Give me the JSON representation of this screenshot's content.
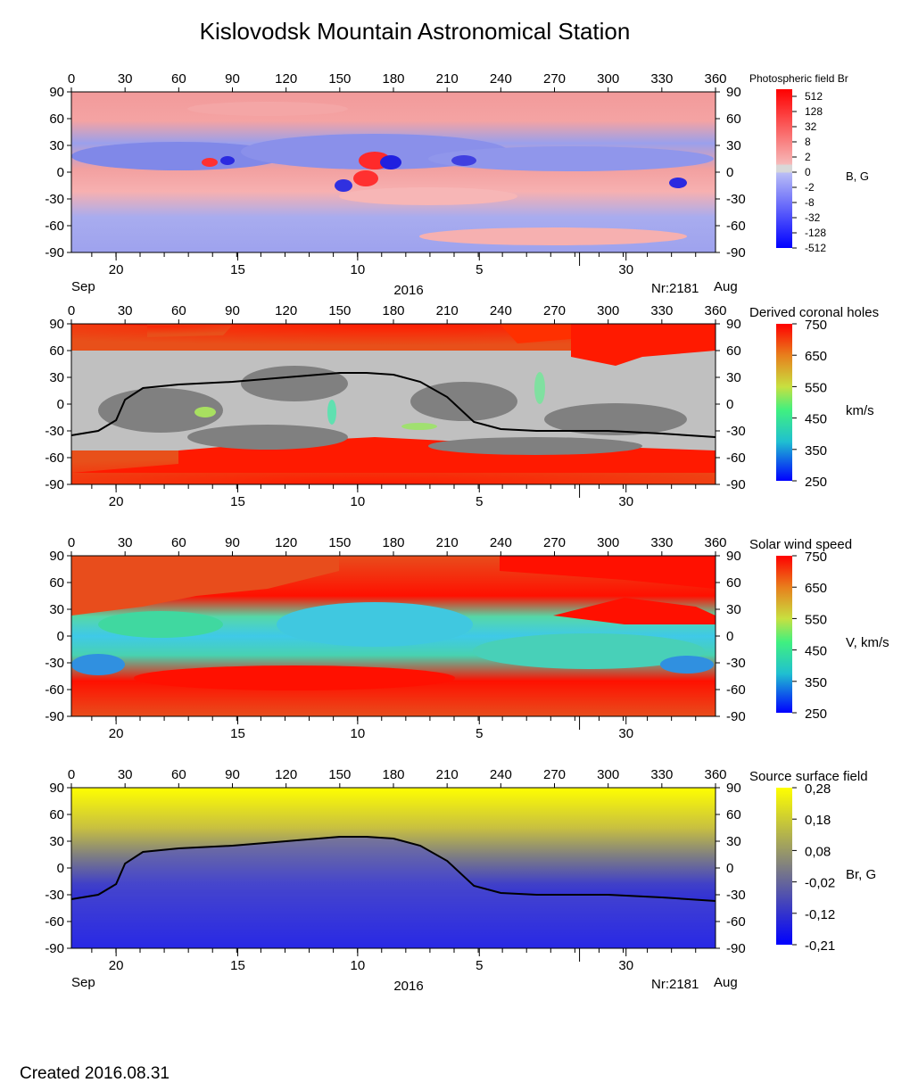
{
  "title": "Kislovodsk Mountain Astronomical Station",
  "created": "Created  2016.08.31",
  "axes": {
    "x_ticks": [
      "0",
      "30",
      "60",
      "90",
      "120",
      "150",
      "180",
      "210",
      "240",
      "270",
      "300",
      "330",
      "360"
    ],
    "y_ticks": [
      "90",
      "60",
      "30",
      "0",
      "-30",
      "-60",
      "-90"
    ],
    "date_ticks": [
      "20",
      "15",
      "10",
      "5",
      "30"
    ],
    "month_left": "Sep",
    "month_right": "Aug",
    "year": "2016",
    "rotation": "Nr:2181"
  },
  "chart_data": [
    {
      "type": "heatmap",
      "title": "Photospheric field Br",
      "colorbar_label": "B, G",
      "colorbar_ticks": [
        "512",
        "128",
        "32",
        "8",
        "2",
        "0",
        "-2",
        "-8",
        "-32",
        "-128",
        "-512"
      ],
      "xlim": [
        0,
        360
      ],
      "ylim": [
        -90,
        90
      ],
      "colors": {
        "positive": "#ff0000",
        "neutral": "#d8d8d8",
        "negative": "#0000ff"
      }
    },
    {
      "type": "heatmap",
      "title": "Derived coronal holes",
      "colorbar_label": "km/s",
      "colorbar_ticks": [
        "750",
        "650",
        "550",
        "450",
        "350",
        "250"
      ],
      "xlim": [
        0,
        360
      ],
      "ylim": [
        -90,
        90
      ],
      "colors": {
        "closed_field": "#808080",
        "closed_field_light": "#c0c0c0",
        "fast": "#ff1a00"
      },
      "neutral_line": {
        "x": [
          0,
          15,
          25,
          30,
          40,
          60,
          90,
          120,
          150,
          165,
          180,
          195,
          210,
          225,
          240,
          260,
          300,
          330,
          360
        ],
        "y": [
          -35,
          -30,
          -18,
          5,
          18,
          22,
          25,
          30,
          35,
          35,
          33,
          25,
          8,
          -20,
          -28,
          -30,
          -30,
          -33,
          -37
        ]
      }
    },
    {
      "type": "heatmap",
      "title": "Solar wind speed",
      "colorbar_label": "V, km/s",
      "colorbar_ticks": [
        "750",
        "650",
        "550",
        "450",
        "350",
        "250"
      ],
      "xlim": [
        0,
        360
      ],
      "ylim": [
        -90,
        90
      ],
      "colors": {
        "fast": "#ff1a00",
        "slow": "#40e0c0"
      }
    },
    {
      "type": "heatmap",
      "title": "Source surface field",
      "colorbar_label": "Br, G",
      "colorbar_ticks": [
        "0,28",
        "0,18",
        "0,08",
        "-0,02",
        "-0,12",
        "-0,21"
      ],
      "xlim": [
        0,
        360
      ],
      "ylim": [
        -90,
        90
      ],
      "colors": {
        "positive": "#ffff00",
        "neutral": "#808080",
        "negative": "#0000ff"
      },
      "neutral_line": {
        "x": [
          0,
          15,
          25,
          30,
          40,
          60,
          90,
          120,
          150,
          165,
          180,
          195,
          210,
          225,
          240,
          260,
          300,
          330,
          360
        ],
        "y": [
          -35,
          -30,
          -18,
          5,
          18,
          22,
          25,
          30,
          35,
          35,
          33,
          25,
          8,
          -20,
          -28,
          -30,
          -30,
          -33,
          -37
        ]
      }
    }
  ]
}
